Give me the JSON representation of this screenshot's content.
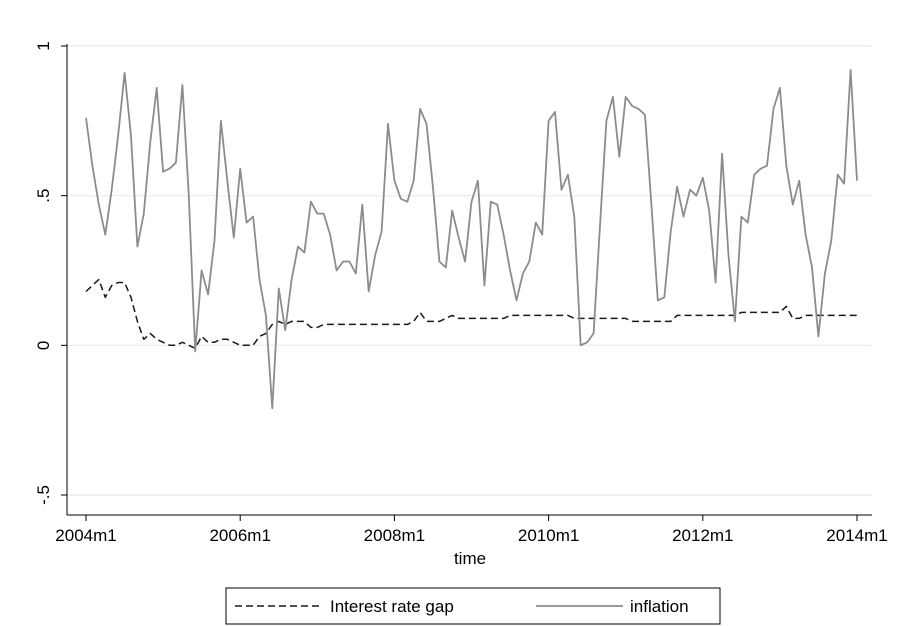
{
  "chart_data": {
    "type": "line",
    "title": "",
    "xlabel": "time",
    "ylabel": "",
    "xlim": [
      "2004m1",
      "2014m1"
    ],
    "ylim": [
      -0.5,
      1
    ],
    "x_ticks": [
      "2004m1",
      "2006m1",
      "2008m1",
      "2010m1",
      "2012m1",
      "2014m1"
    ],
    "y_ticks": [
      {
        "value": -0.5,
        "label": "-.5"
      },
      {
        "value": 0,
        "label": "0"
      },
      {
        "value": 0.5,
        "label": ".5"
      },
      {
        "value": 1,
        "label": "1"
      }
    ],
    "grid": "horizontal",
    "legend_position": "bottom",
    "colors": {
      "inflation": "#8c8c8c",
      "gap": "#1a1a1a",
      "grid": "#e4eeee",
      "frame": "#000000"
    },
    "series": [
      {
        "name": "Interest rate gap",
        "style": "dashed",
        "points": [
          [
            "2004m1",
            0.18
          ],
          [
            "2004m2",
            0.2
          ],
          [
            "2004m3",
            0.22
          ],
          [
            "2004m4",
            0.16
          ],
          [
            "2004m5",
            0.2
          ],
          [
            "2004m6",
            0.21
          ],
          [
            "2004m7",
            0.21
          ],
          [
            "2004m8",
            0.16
          ],
          [
            "2004m9",
            0.08
          ],
          [
            "2004m10",
            0.02
          ],
          [
            "2004m11",
            0.04
          ],
          [
            "2004m12",
            0.02
          ],
          [
            "2005m1",
            0.01
          ],
          [
            "2005m2",
            0.0
          ],
          [
            "2005m3",
            0.0
          ],
          [
            "2005m4",
            0.01
          ],
          [
            "2005m5",
            0.0
          ],
          [
            "2005m6",
            -0.01
          ],
          [
            "2005m7",
            0.03
          ],
          [
            "2005m8",
            0.01
          ],
          [
            "2005m9",
            0.01
          ],
          [
            "2005m10",
            0.02
          ],
          [
            "2005m11",
            0.02
          ],
          [
            "2005m12",
            0.01
          ],
          [
            "2006m1",
            0.0
          ],
          [
            "2006m2",
            0.0
          ],
          [
            "2006m3",
            0.0
          ],
          [
            "2006m4",
            0.03
          ],
          [
            "2006m5",
            0.04
          ],
          [
            "2006m6",
            0.07
          ],
          [
            "2006m7",
            0.08
          ],
          [
            "2006m8",
            0.07
          ],
          [
            "2006m9",
            0.08
          ],
          [
            "2006m10",
            0.08
          ],
          [
            "2006m11",
            0.08
          ],
          [
            "2006m12",
            0.06
          ],
          [
            "2007m1",
            0.06
          ],
          [
            "2007m2",
            0.07
          ],
          [
            "2007m3",
            0.07
          ],
          [
            "2007m4",
            0.07
          ],
          [
            "2007m5",
            0.07
          ],
          [
            "2007m6",
            0.07
          ],
          [
            "2007m7",
            0.07
          ],
          [
            "2007m8",
            0.07
          ],
          [
            "2007m9",
            0.07
          ],
          [
            "2007m10",
            0.07
          ],
          [
            "2007m11",
            0.07
          ],
          [
            "2007m12",
            0.07
          ],
          [
            "2008m1",
            0.07
          ],
          [
            "2008m2",
            0.07
          ],
          [
            "2008m3",
            0.07
          ],
          [
            "2008m4",
            0.08
          ],
          [
            "2008m5",
            0.11
          ],
          [
            "2008m6",
            0.08
          ],
          [
            "2008m7",
            0.08
          ],
          [
            "2008m8",
            0.08
          ],
          [
            "2008m9",
            0.09
          ],
          [
            "2008m10",
            0.1
          ],
          [
            "2008m11",
            0.09
          ],
          [
            "2008m12",
            0.09
          ],
          [
            "2009m1",
            0.09
          ],
          [
            "2009m2",
            0.09
          ],
          [
            "2009m3",
            0.09
          ],
          [
            "2009m4",
            0.09
          ],
          [
            "2009m5",
            0.09
          ],
          [
            "2009m6",
            0.09
          ],
          [
            "2009m7",
            0.1
          ],
          [
            "2009m8",
            0.1
          ],
          [
            "2009m9",
            0.1
          ],
          [
            "2009m10",
            0.1
          ],
          [
            "2009m11",
            0.1
          ],
          [
            "2009m12",
            0.1
          ],
          [
            "2010m1",
            0.1
          ],
          [
            "2010m2",
            0.1
          ],
          [
            "2010m3",
            0.1
          ],
          [
            "2010m4",
            0.1
          ],
          [
            "2010m5",
            0.09
          ],
          [
            "2010m6",
            0.09
          ],
          [
            "2010m7",
            0.09
          ],
          [
            "2010m8",
            0.09
          ],
          [
            "2010m9",
            0.09
          ],
          [
            "2010m10",
            0.09
          ],
          [
            "2010m11",
            0.09
          ],
          [
            "2010m12",
            0.09
          ],
          [
            "2011m1",
            0.09
          ],
          [
            "2011m2",
            0.08
          ],
          [
            "2011m3",
            0.08
          ],
          [
            "2011m4",
            0.08
          ],
          [
            "2011m5",
            0.08
          ],
          [
            "2011m6",
            0.08
          ],
          [
            "2011m7",
            0.08
          ],
          [
            "2011m8",
            0.08
          ],
          [
            "2011m9",
            0.1
          ],
          [
            "2011m10",
            0.1
          ],
          [
            "2011m11",
            0.1
          ],
          [
            "2011m12",
            0.1
          ],
          [
            "2012m1",
            0.1
          ],
          [
            "2012m2",
            0.1
          ],
          [
            "2012m3",
            0.1
          ],
          [
            "2012m4",
            0.1
          ],
          [
            "2012m5",
            0.1
          ],
          [
            "2012m6",
            0.1
          ],
          [
            "2012m7",
            0.11
          ],
          [
            "2012m8",
            0.11
          ],
          [
            "2012m9",
            0.11
          ],
          [
            "2012m10",
            0.11
          ],
          [
            "2012m11",
            0.11
          ],
          [
            "2012m12",
            0.11
          ],
          [
            "2013m1",
            0.11
          ],
          [
            "2013m2",
            0.13
          ],
          [
            "2013m3",
            0.09
          ],
          [
            "2013m4",
            0.09
          ],
          [
            "2013m5",
            0.1
          ],
          [
            "2013m6",
            0.1
          ],
          [
            "2013m7",
            0.1
          ],
          [
            "2013m8",
            0.1
          ],
          [
            "2013m9",
            0.1
          ],
          [
            "2013m10",
            0.1
          ],
          [
            "2013m11",
            0.1
          ],
          [
            "2013m12",
            0.1
          ],
          [
            "2014m1",
            0.1
          ]
        ]
      },
      {
        "name": "inflation",
        "style": "solid",
        "points": [
          [
            "2004m1",
            0.76
          ],
          [
            "2004m2",
            0.6
          ],
          [
            "2004m3",
            0.47
          ],
          [
            "2004m4",
            0.37
          ],
          [
            "2004m5",
            0.52
          ],
          [
            "2004m6",
            0.7
          ],
          [
            "2004m7",
            0.91
          ],
          [
            "2004m8",
            0.7
          ],
          [
            "2004m9",
            0.33
          ],
          [
            "2004m10",
            0.44
          ],
          [
            "2004m11",
            0.68
          ],
          [
            "2004m12",
            0.86
          ],
          [
            "2005m1",
            0.58
          ],
          [
            "2005m2",
            0.59
          ],
          [
            "2005m3",
            0.61
          ],
          [
            "2005m4",
            0.87
          ],
          [
            "2005m5",
            0.5
          ],
          [
            "2005m6",
            -0.02
          ],
          [
            "2005m7",
            0.25
          ],
          [
            "2005m8",
            0.17
          ],
          [
            "2005m9",
            0.35
          ],
          [
            "2005m10",
            0.75
          ],
          [
            "2005m11",
            0.55
          ],
          [
            "2005m12",
            0.36
          ],
          [
            "2006m1",
            0.59
          ],
          [
            "2006m2",
            0.41
          ],
          [
            "2006m3",
            0.43
          ],
          [
            "2006m4",
            0.22
          ],
          [
            "2006m5",
            0.1
          ],
          [
            "2006m6",
            -0.21
          ],
          [
            "2006m7",
            0.19
          ],
          [
            "2006m8",
            0.05
          ],
          [
            "2006m9",
            0.22
          ],
          [
            "2006m10",
            0.33
          ],
          [
            "2006m11",
            0.31
          ],
          [
            "2006m12",
            0.48
          ],
          [
            "2007m1",
            0.44
          ],
          [
            "2007m2",
            0.44
          ],
          [
            "2007m3",
            0.37
          ],
          [
            "2007m4",
            0.25
          ],
          [
            "2007m5",
            0.28
          ],
          [
            "2007m6",
            0.28
          ],
          [
            "2007m7",
            0.24
          ],
          [
            "2007m8",
            0.47
          ],
          [
            "2007m9",
            0.18
          ],
          [
            "2007m10",
            0.3
          ],
          [
            "2007m11",
            0.38
          ],
          [
            "2007m12",
            0.74
          ],
          [
            "2008m1",
            0.55
          ],
          [
            "2008m2",
            0.49
          ],
          [
            "2008m3",
            0.48
          ],
          [
            "2008m4",
            0.55
          ],
          [
            "2008m5",
            0.79
          ],
          [
            "2008m6",
            0.74
          ],
          [
            "2008m7",
            0.53
          ],
          [
            "2008m8",
            0.28
          ],
          [
            "2008m9",
            0.26
          ],
          [
            "2008m10",
            0.45
          ],
          [
            "2008m11",
            0.36
          ],
          [
            "2008m12",
            0.28
          ],
          [
            "2009m1",
            0.48
          ],
          [
            "2009m2",
            0.55
          ],
          [
            "2009m3",
            0.2
          ],
          [
            "2009m4",
            0.48
          ],
          [
            "2009m5",
            0.47
          ],
          [
            "2009m6",
            0.37
          ],
          [
            "2009m7",
            0.25
          ],
          [
            "2009m8",
            0.15
          ],
          [
            "2009m9",
            0.24
          ],
          [
            "2009m10",
            0.28
          ],
          [
            "2009m11",
            0.41
          ],
          [
            "2009m12",
            0.37
          ],
          [
            "2010m1",
            0.75
          ],
          [
            "2010m2",
            0.78
          ],
          [
            "2010m3",
            0.52
          ],
          [
            "2010m4",
            0.57
          ],
          [
            "2010m5",
            0.43
          ],
          [
            "2010m6",
            0.0
          ],
          [
            "2010m7",
            0.01
          ],
          [
            "2010m8",
            0.04
          ],
          [
            "2010m9",
            0.4
          ],
          [
            "2010m10",
            0.75
          ],
          [
            "2010m11",
            0.83
          ],
          [
            "2010m12",
            0.63
          ],
          [
            "2011m1",
            0.83
          ],
          [
            "2011m2",
            0.8
          ],
          [
            "2011m3",
            0.79
          ],
          [
            "2011m4",
            0.77
          ],
          [
            "2011m5",
            0.47
          ],
          [
            "2011m6",
            0.15
          ],
          [
            "2011m7",
            0.16
          ],
          [
            "2011m8",
            0.38
          ],
          [
            "2011m9",
            0.53
          ],
          [
            "2011m10",
            0.43
          ],
          [
            "2011m11",
            0.52
          ],
          [
            "2011m12",
            0.5
          ],
          [
            "2012m1",
            0.56
          ],
          [
            "2012m2",
            0.45
          ],
          [
            "2012m3",
            0.21
          ],
          [
            "2012m4",
            0.64
          ],
          [
            "2012m5",
            0.3
          ],
          [
            "2012m6",
            0.08
          ],
          [
            "2012m7",
            0.43
          ],
          [
            "2012m8",
            0.41
          ],
          [
            "2012m9",
            0.57
          ],
          [
            "2012m10",
            0.59
          ],
          [
            "2012m11",
            0.6
          ],
          [
            "2012m12",
            0.79
          ],
          [
            "2013m1",
            0.86
          ],
          [
            "2013m2",
            0.6
          ],
          [
            "2013m3",
            0.47
          ],
          [
            "2013m4",
            0.55
          ],
          [
            "2013m5",
            0.37
          ],
          [
            "2013m6",
            0.26
          ],
          [
            "2013m7",
            0.03
          ],
          [
            "2013m8",
            0.24
          ],
          [
            "2013m9",
            0.35
          ],
          [
            "2013m10",
            0.57
          ],
          [
            "2013m11",
            0.54
          ],
          [
            "2013m12",
            0.92
          ],
          [
            "2014m1",
            0.55
          ]
        ]
      }
    ],
    "legend": [
      {
        "label": "Interest rate gap",
        "style": "dashed"
      },
      {
        "label": "inflation",
        "style": "solid"
      }
    ]
  }
}
